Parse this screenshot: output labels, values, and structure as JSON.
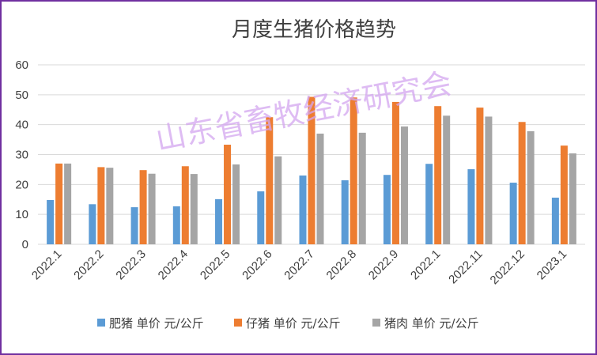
{
  "chart_data": {
    "type": "bar",
    "title": "月度生猪价格趋势",
    "watermark": "山东省畜牧经济研究会",
    "categories": [
      "2022.1",
      "2022.2",
      "2022.3",
      "2022.4",
      "2022.5",
      "2022.6",
      "2022.7",
      "2022.8",
      "2022.9",
      "2022.1",
      "2022.11",
      "2022.12",
      "2023.1"
    ],
    "ylim": [
      0,
      60
    ],
    "yticks": [
      0,
      10,
      20,
      30,
      40,
      50,
      60
    ],
    "grid": true,
    "legend_position": "bottom",
    "series": [
      {
        "name": "肥猪 单价 元/公斤",
        "color": "#5b9bd5",
        "values": [
          14.8,
          13.4,
          12.4,
          12.7,
          15.1,
          17.7,
          23.0,
          21.4,
          23.2,
          26.9,
          25.1,
          20.6,
          15.6
        ]
      },
      {
        "name": "仔猪 单价 元/公斤",
        "color": "#ed7d31",
        "values": [
          27.0,
          25.8,
          24.8,
          26.1,
          33.3,
          42.5,
          49.3,
          49.1,
          47.6,
          46.2,
          45.7,
          40.9,
          33.0
        ]
      },
      {
        "name": "猪肉 单价 元/公斤",
        "color": "#a5a5a5",
        "values": [
          27.0,
          25.6,
          23.6,
          23.5,
          26.7,
          29.4,
          37.0,
          37.3,
          39.4,
          43.0,
          42.7,
          37.8,
          30.4
        ]
      }
    ]
  }
}
